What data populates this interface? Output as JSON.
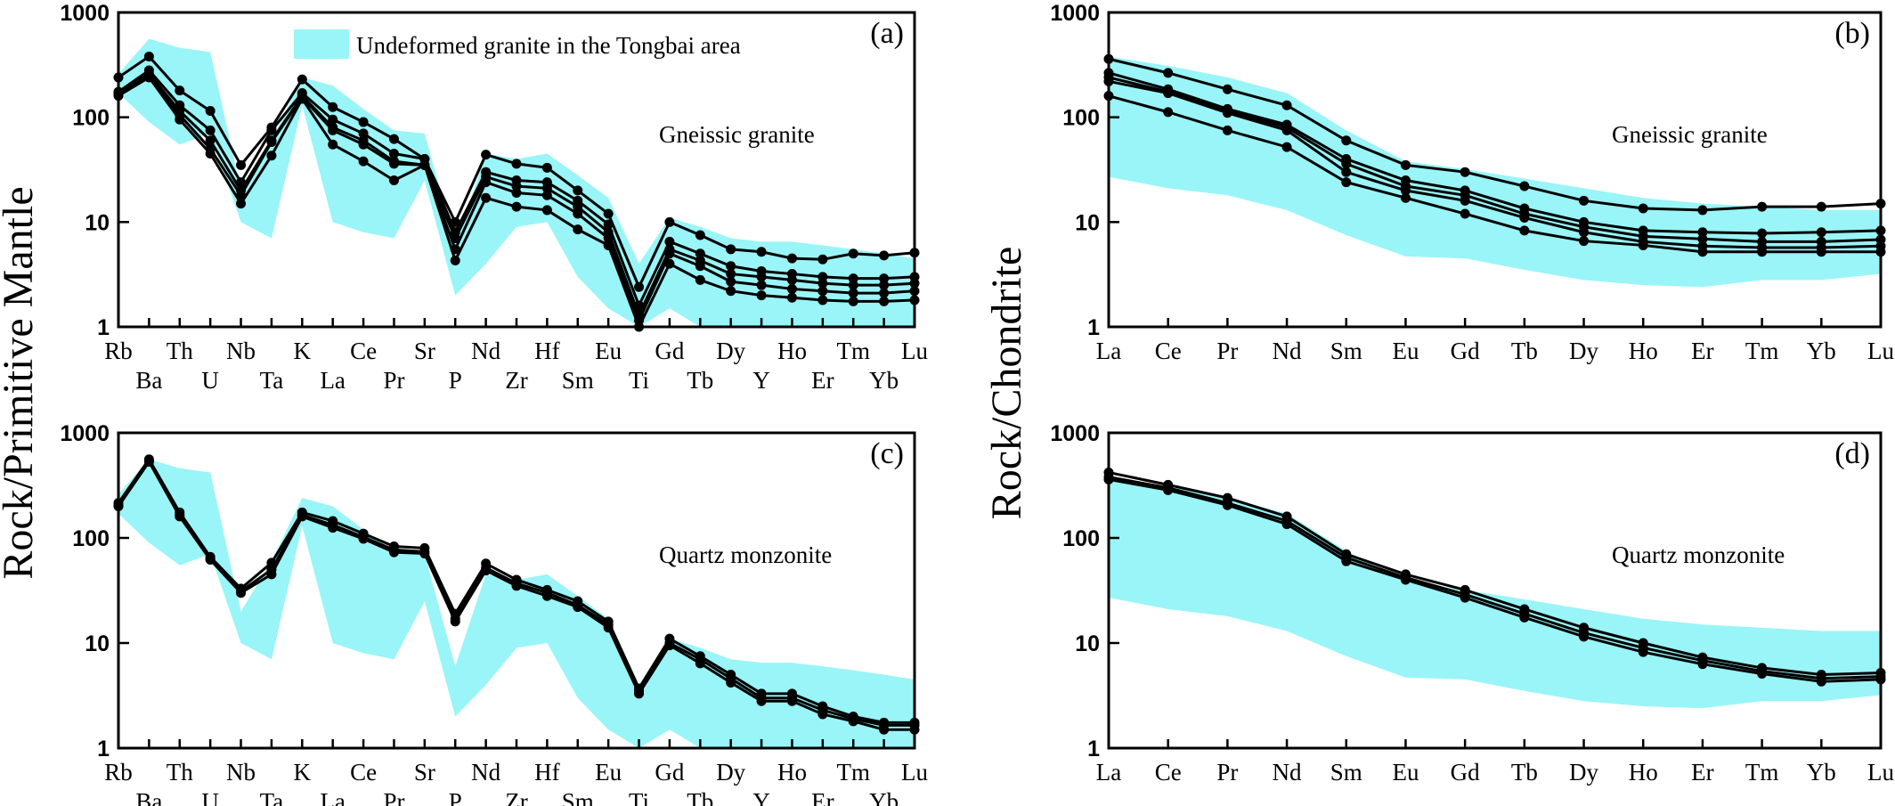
{
  "figure": {
    "ylabel_left": "Rock/Primitive Mantle",
    "ylabel_right": "Rock/Chondrite",
    "legend_label": "Undeformed granite in the Tongbai area",
    "band_color": "#99f5f7",
    "line_color": "#000000"
  },
  "chart_data": [
    {
      "type": "line",
      "tag": "(a)",
      "label": "Gneissic granite",
      "log_y": true,
      "ylim": [
        1,
        1000
      ],
      "yticks": [
        "1",
        "10",
        "100",
        "1000"
      ],
      "categories": [
        "Rb",
        "Ba",
        "Th",
        "U",
        "Nb",
        "Ta",
        "K",
        "La",
        "Ce",
        "Pr",
        "Sr",
        "P",
        "Nd",
        "Zr",
        "Hf",
        "Sm",
        "Eu",
        "Ti",
        "Gd",
        "Tb",
        "Dy",
        "Y",
        "Ho",
        "Er",
        "Tm",
        "Yb",
        "Lu"
      ],
      "band": {
        "upper": [
          260,
          560,
          460,
          420,
          20,
          60,
          240,
          200,
          120,
          75,
          70,
          6,
          45,
          40,
          45,
          28,
          17,
          4,
          11,
          9,
          7,
          6.5,
          6.5,
          6,
          5.5,
          5,
          4.5
        ],
        "lower": [
          170,
          90,
          55,
          70,
          10,
          7,
          130,
          10,
          8,
          7,
          25,
          2,
          4,
          9,
          10,
          3,
          1.5,
          1,
          1.5,
          1,
          1,
          1,
          1,
          1,
          1,
          1,
          1
        ]
      },
      "series": [
        {
          "values": [
            240,
            380,
            180,
            115,
            35,
            80,
            230,
            125,
            90,
            62,
            40,
            10,
            44,
            36,
            33,
            20,
            12,
            2.4,
            10,
            7.5,
            5.5,
            5.2,
            4.5,
            4.4,
            5,
            4.8,
            5.1
          ]
        },
        {
          "values": [
            175,
            280,
            130,
            75,
            24,
            75,
            170,
            95,
            70,
            45,
            40,
            8,
            30,
            25,
            24,
            16,
            9.5,
            1.6,
            6.5,
            5,
            3.8,
            3.4,
            3.2,
            3,
            2.9,
            2.9,
            3
          ]
        },
        {
          "values": [
            170,
            260,
            115,
            60,
            20,
            60,
            160,
            80,
            60,
            38,
            35,
            7,
            27,
            22,
            21,
            14,
            8,
            1.3,
            5.5,
            4.3,
            3.2,
            3,
            2.8,
            2.6,
            2.5,
            2.5,
            2.6
          ]
        },
        {
          "values": [
            165,
            250,
            105,
            50,
            18,
            58,
            155,
            75,
            55,
            36,
            35,
            5.5,
            24,
            19,
            18,
            12,
            7,
            1.15,
            5,
            3.8,
            2.7,
            2.5,
            2.3,
            2.2,
            2.1,
            2.1,
            2.2
          ]
        },
        {
          "values": [
            160,
            240,
            95,
            45,
            15,
            43,
            150,
            55,
            38,
            25,
            35,
            4.3,
            17,
            14,
            13,
            8.5,
            6,
            1,
            4,
            2.8,
            2.2,
            2,
            1.9,
            1.8,
            1.75,
            1.75,
            1.8
          ]
        }
      ]
    },
    {
      "type": "line",
      "tag": "(b)",
      "label": "Gneissic granite",
      "log_y": true,
      "ylim": [
        1,
        1000
      ],
      "yticks": [
        "1",
        "10",
        "100",
        "1000"
      ],
      "categories": [
        "La",
        "Ce",
        "Pr",
        "Nd",
        "Sm",
        "Eu",
        "Gd",
        "Tb",
        "Dy",
        "Ho",
        "Er",
        "Tm",
        "Yb",
        "Lu"
      ],
      "band": {
        "upper": [
          380,
          310,
          240,
          170,
          75,
          38,
          32,
          26,
          21,
          17,
          15,
          14,
          13,
          13
        ],
        "lower": [
          27,
          21,
          18,
          13,
          7.5,
          4.7,
          4.5,
          3.5,
          2.8,
          2.5,
          2.4,
          2.8,
          2.8,
          3.2
        ]
      },
      "series": [
        {
          "values": [
            360,
            265,
            185,
            130,
            60,
            35,
            30,
            22,
            16,
            13.5,
            13,
            14,
            14,
            15
          ]
        },
        {
          "values": [
            265,
            185,
            120,
            85,
            40,
            25,
            20,
            13.5,
            10,
            8.3,
            8,
            7.8,
            8,
            8.3
          ]
        },
        {
          "values": [
            240,
            175,
            115,
            80,
            36,
            22,
            18,
            12,
            9,
            7.3,
            6.9,
            6.5,
            6.5,
            6.8
          ]
        },
        {
          "values": [
            220,
            170,
            110,
            75,
            30,
            20,
            16,
            11,
            8,
            6.5,
            5.9,
            5.7,
            5.7,
            5.9
          ]
        },
        {
          "values": [
            160,
            112,
            75,
            52,
            24,
            17,
            12,
            8.3,
            6.6,
            6,
            5.2,
            5.2,
            5.2,
            5.2
          ]
        }
      ]
    },
    {
      "type": "line",
      "tag": "(c)",
      "label": "Quartz monzonite",
      "log_y": true,
      "ylim": [
        1,
        1000
      ],
      "yticks": [
        "1",
        "10",
        "100",
        "1000"
      ],
      "categories": [
        "Rb",
        "Ba",
        "Th",
        "U",
        "Nb",
        "Ta",
        "K",
        "La",
        "Ce",
        "Pr",
        "Sr",
        "P",
        "Nd",
        "Zr",
        "Hf",
        "Sm",
        "Eu",
        "Ti",
        "Gd",
        "Tb",
        "Dy",
        "Y",
        "Ho",
        "Er",
        "Tm",
        "Yb",
        "Lu"
      ],
      "band": {
        "upper": [
          260,
          560,
          460,
          420,
          20,
          60,
          240,
          200,
          120,
          75,
          70,
          6,
          45,
          40,
          45,
          28,
          17,
          4,
          11,
          9,
          7,
          6.5,
          6.5,
          6,
          5.5,
          5,
          4.5
        ],
        "lower": [
          170,
          90,
          55,
          70,
          10,
          7,
          130,
          10,
          8,
          7,
          25,
          2,
          4,
          9,
          10,
          3,
          1.5,
          1,
          1.5,
          1,
          1,
          1,
          1,
          1,
          1,
          1,
          1
        ]
      },
      "series": [
        {
          "values": [
            215,
            560,
            175,
            66,
            33,
            58,
            175,
            145,
            110,
            83,
            80,
            19,
            57,
            40,
            32,
            25,
            16,
            3.7,
            11,
            7.5,
            5,
            3.3,
            3.3,
            2.5,
            2,
            1.75,
            1.75
          ]
        },
        {
          "values": [
            205,
            540,
            165,
            63,
            31,
            50,
            165,
            133,
            102,
            77,
            74,
            17,
            52,
            37,
            30,
            23,
            15,
            3.5,
            10,
            7,
            4.6,
            3,
            3,
            2.3,
            1.9,
            1.65,
            1.65
          ]
        },
        {
          "values": [
            200,
            530,
            160,
            62,
            30,
            45,
            160,
            125,
            98,
            73,
            71,
            16,
            49,
            35,
            28,
            22,
            14,
            3.3,
            9.5,
            6.4,
            4.2,
            2.8,
            2.8,
            2.1,
            1.8,
            1.5,
            1.5
          ]
        }
      ]
    },
    {
      "type": "line",
      "tag": "(d)",
      "label": "Quartz monzonite",
      "log_y": true,
      "ylim": [
        1,
        1000
      ],
      "yticks": [
        "1",
        "10",
        "100",
        "1000"
      ],
      "categories": [
        "La",
        "Ce",
        "Pr",
        "Nd",
        "Sm",
        "Eu",
        "Gd",
        "Tb",
        "Dy",
        "Ho",
        "Er",
        "Tm",
        "Yb",
        "Lu"
      ],
      "band": {
        "upper": [
          380,
          310,
          240,
          170,
          75,
          38,
          32,
          26,
          21,
          17,
          15,
          14,
          13,
          13
        ],
        "lower": [
          27,
          21,
          18,
          13,
          7.5,
          4.7,
          4.5,
          3.5,
          2.8,
          2.5,
          2.4,
          2.8,
          2.8,
          3.2
        ]
      },
      "series": [
        {
          "values": [
            420,
            320,
            240,
            160,
            70,
            45,
            32,
            21,
            14,
            10,
            7.3,
            5.8,
            5,
            5.2
          ]
        },
        {
          "values": [
            380,
            300,
            215,
            145,
            65,
            42,
            29,
            19,
            12.5,
            9,
            6.8,
            5.4,
            4.6,
            4.8
          ]
        },
        {
          "values": [
            360,
            285,
            205,
            135,
            60,
            40,
            27,
            17.5,
            11.5,
            8.2,
            6.3,
            5.1,
            4.3,
            4.5
          ]
        }
      ]
    }
  ]
}
